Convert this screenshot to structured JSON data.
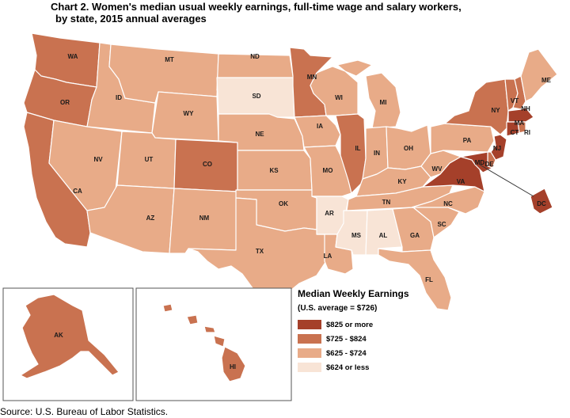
{
  "title": {
    "line1": "Chart 2. Women's median usual weekly earnings, full-time wage and salary workers,",
    "line2": "by state, 2015 annual averages"
  },
  "legend": {
    "title": "Median Weekly Earnings",
    "subtitle": "(U.S. average = $726)",
    "items": [
      {
        "label": "$825 or more",
        "color": "#a5402a"
      },
      {
        "label": "$725 - $824",
        "color": "#c97250"
      },
      {
        "label": "$625 - $724",
        "color": "#e8ab88"
      },
      {
        "label": "$624 or less",
        "color": "#f8e4d6"
      }
    ]
  },
  "colors": {
    "c825": "#a5402a",
    "c725": "#c97250",
    "c625": "#e8ab88",
    "c624": "#f8e4d6"
  },
  "states": [
    {
      "abbr": "WA",
      "class": "c725"
    },
    {
      "abbr": "OR",
      "class": "c725"
    },
    {
      "abbr": "CA",
      "class": "c725"
    },
    {
      "abbr": "ID",
      "class": "c625"
    },
    {
      "abbr": "NV",
      "class": "c625"
    },
    {
      "abbr": "MT",
      "class": "c625"
    },
    {
      "abbr": "WY",
      "class": "c625"
    },
    {
      "abbr": "UT",
      "class": "c625"
    },
    {
      "abbr": "AZ",
      "class": "c625"
    },
    {
      "abbr": "CO",
      "class": "c725"
    },
    {
      "abbr": "NM",
      "class": "c625"
    },
    {
      "abbr": "ND",
      "class": "c625"
    },
    {
      "abbr": "SD",
      "class": "c624"
    },
    {
      "abbr": "NE",
      "class": "c625"
    },
    {
      "abbr": "KS",
      "class": "c625"
    },
    {
      "abbr": "OK",
      "class": "c625"
    },
    {
      "abbr": "TX",
      "class": "c625"
    },
    {
      "abbr": "MN",
      "class": "c725"
    },
    {
      "abbr": "IA",
      "class": "c625"
    },
    {
      "abbr": "MO",
      "class": "c625"
    },
    {
      "abbr": "AR",
      "class": "c624"
    },
    {
      "abbr": "LA",
      "class": "c625"
    },
    {
      "abbr": "WI",
      "class": "c625"
    },
    {
      "abbr": "IL",
      "class": "c725"
    },
    {
      "abbr": "MI",
      "class": "c625"
    },
    {
      "abbr": "IN",
      "class": "c625"
    },
    {
      "abbr": "OH",
      "class": "c625"
    },
    {
      "abbr": "KY",
      "class": "c625"
    },
    {
      "abbr": "TN",
      "class": "c625"
    },
    {
      "abbr": "MS",
      "class": "c624"
    },
    {
      "abbr": "AL",
      "class": "c624"
    },
    {
      "abbr": "GA",
      "class": "c625"
    },
    {
      "abbr": "FL",
      "class": "c625"
    },
    {
      "abbr": "SC",
      "class": "c625"
    },
    {
      "abbr": "NC",
      "class": "c625"
    },
    {
      "abbr": "VA",
      "class": "c825"
    },
    {
      "abbr": "WV",
      "class": "c625"
    },
    {
      "abbr": "PA",
      "class": "c625"
    },
    {
      "abbr": "NY",
      "class": "c725"
    },
    {
      "abbr": "VT",
      "class": "c725"
    },
    {
      "abbr": "NH",
      "class": "c725"
    },
    {
      "abbr": "ME",
      "class": "c625"
    },
    {
      "abbr": "MA",
      "class": "c825"
    },
    {
      "abbr": "RI",
      "class": "c725"
    },
    {
      "abbr": "CT",
      "class": "c825"
    },
    {
      "abbr": "NJ",
      "class": "c825"
    },
    {
      "abbr": "DE",
      "class": "c725"
    },
    {
      "abbr": "MD",
      "class": "c825"
    },
    {
      "abbr": "DC",
      "class": "c825"
    },
    {
      "abbr": "AK",
      "class": "c725"
    },
    {
      "abbr": "HI",
      "class": "c725"
    }
  ],
  "source": "Source: U.S. Bureau of Labor Statistics."
}
